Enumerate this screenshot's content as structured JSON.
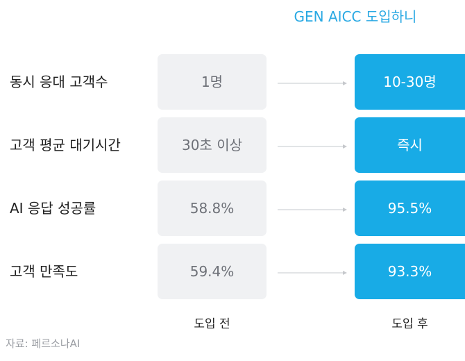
{
  "heading": "GEN AICC 도입하니",
  "rows": [
    {
      "label": "동시 응대 고객수",
      "before": "1명",
      "after": "10-30명"
    },
    {
      "label": "고객 평균 대기시간",
      "before": "30초 이상",
      "after": "즉시"
    },
    {
      "label": "AI 응답 성공률",
      "before": "58.8%",
      "after": "95.5%"
    },
    {
      "label": "고객 만족도",
      "before": "59.4%",
      "after": "93.3%"
    }
  ],
  "column_labels": {
    "before": "도입 전",
    "after": "도입 후"
  },
  "source": "자료: 페르소나AI",
  "colors": {
    "accent": "#18abe6",
    "heading": "#2aa9e3",
    "before_box": "#f0f1f3",
    "before_text": "#6e7178",
    "arrow": "#c6c8cc"
  }
}
